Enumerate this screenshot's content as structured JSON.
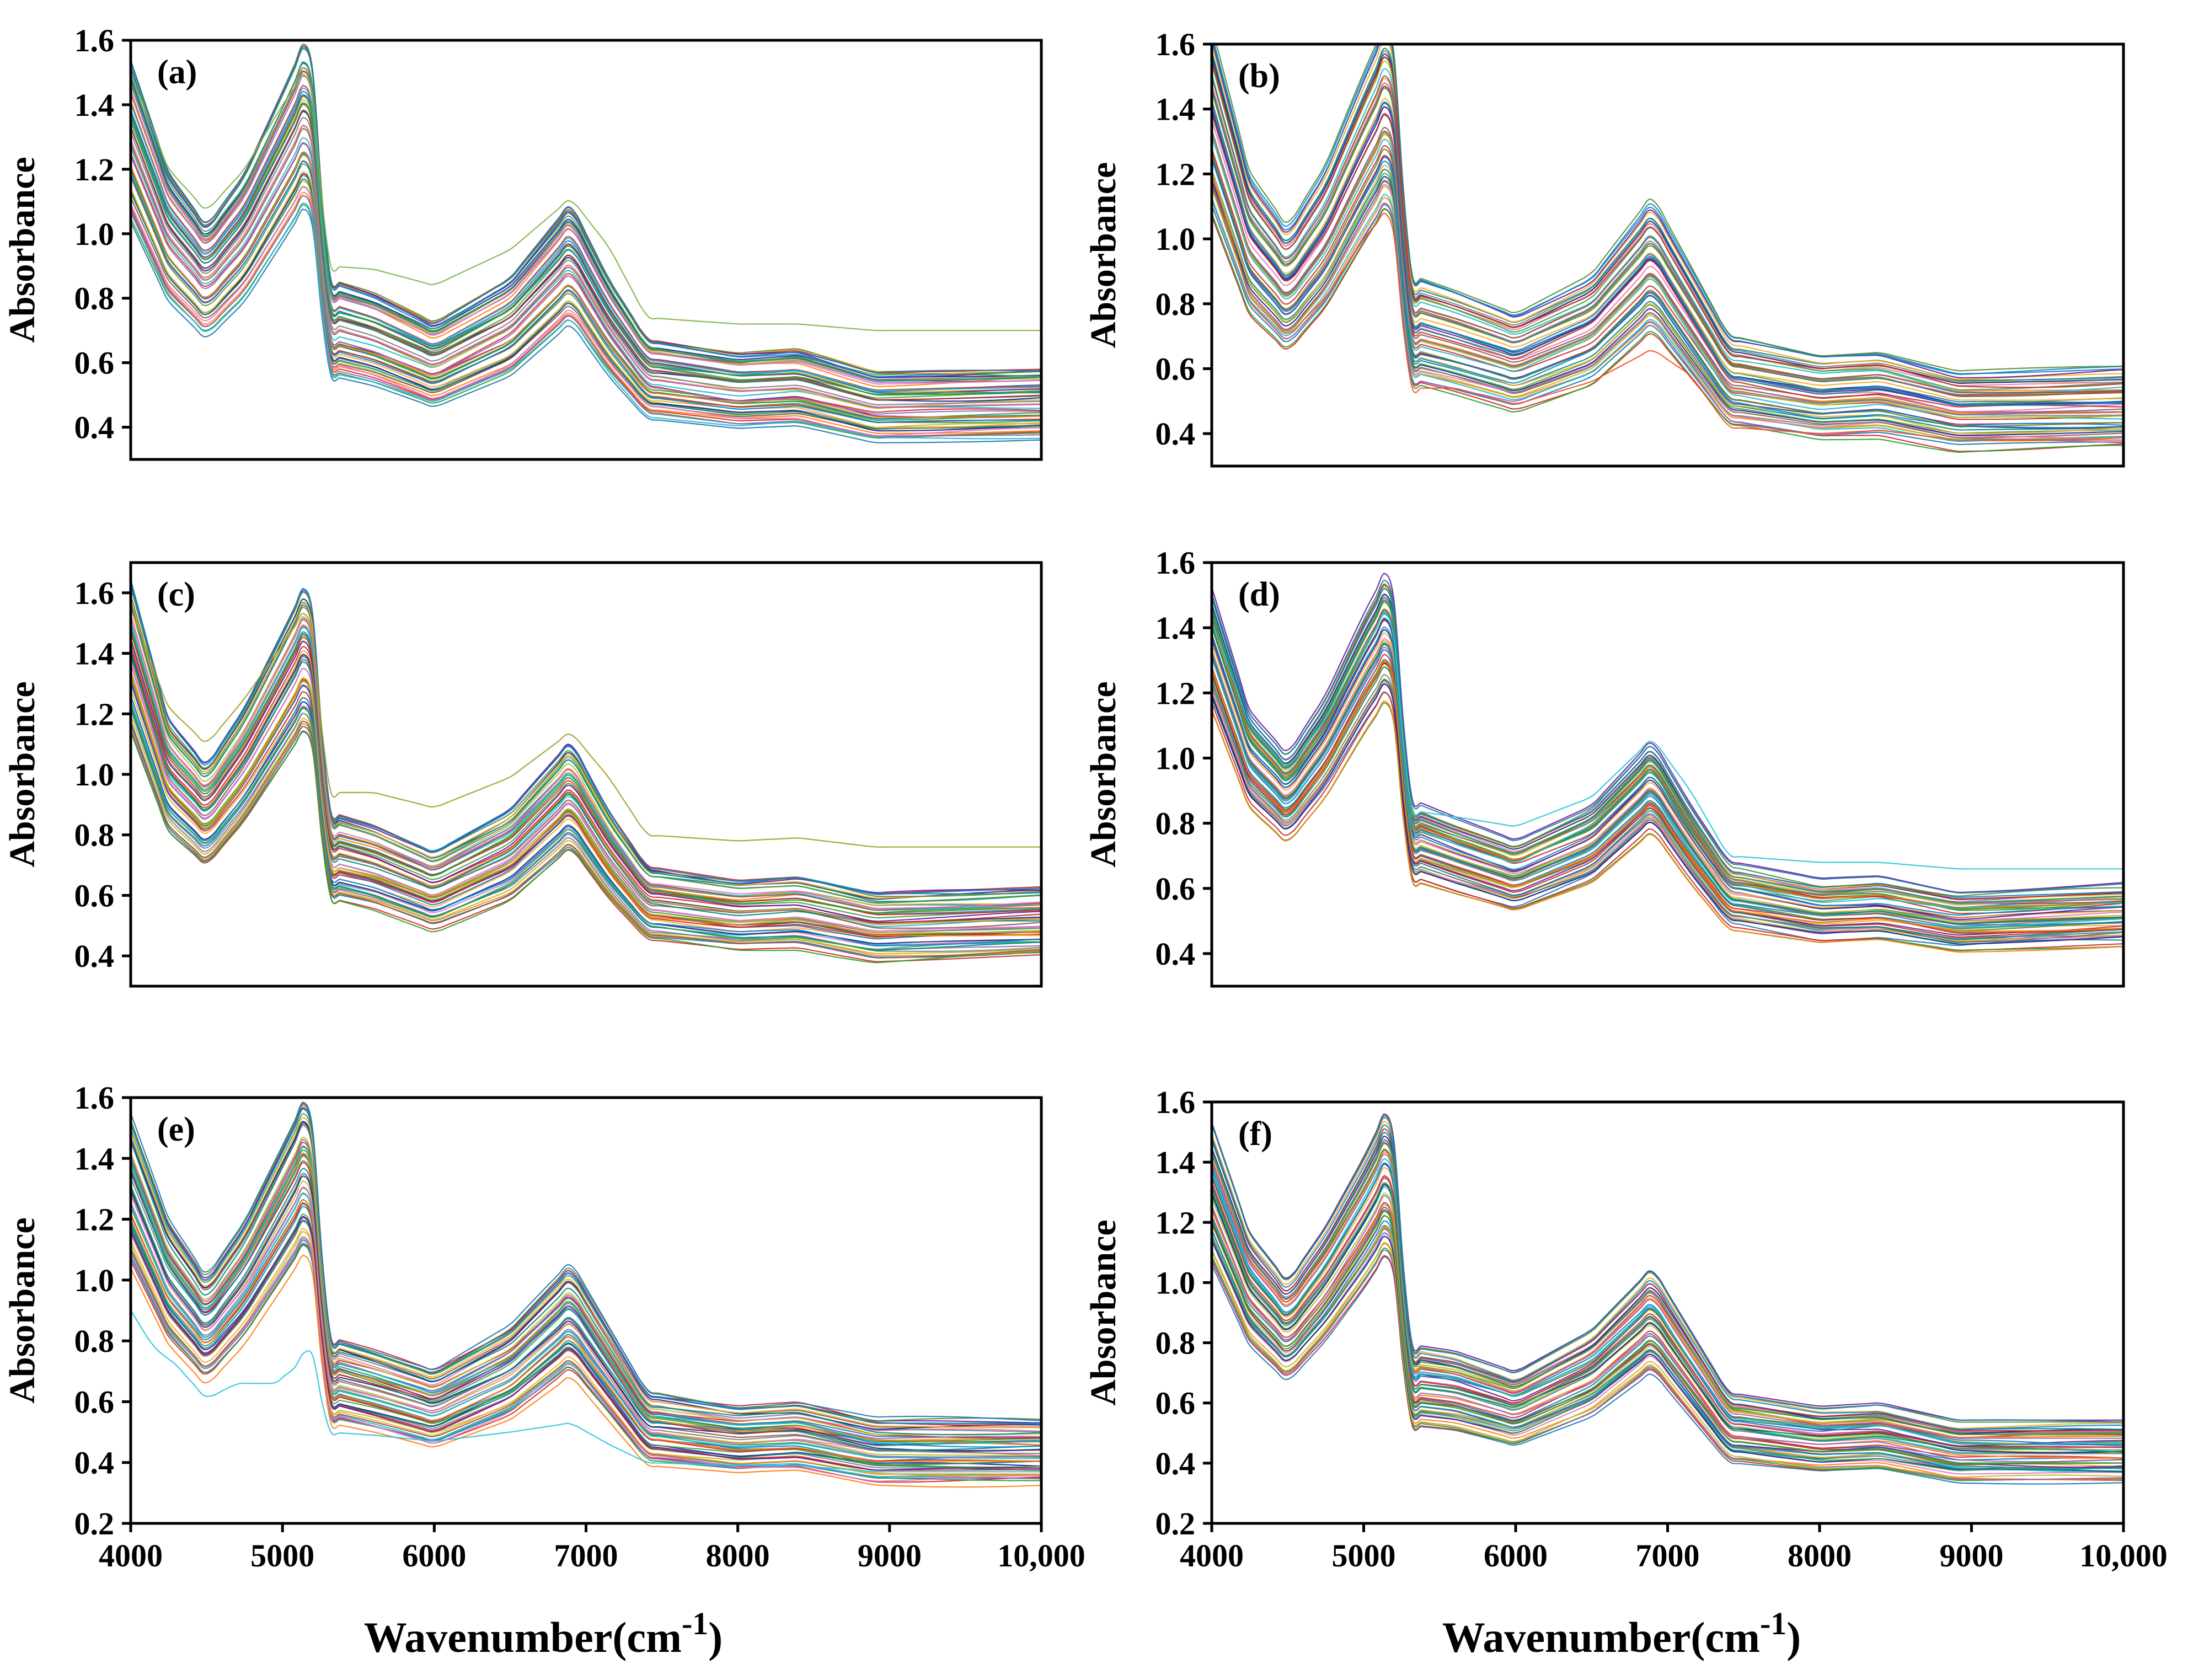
{
  "chart_data": [
    {
      "panel": "(a)",
      "type": "line",
      "xlabel": "",
      "ylabel": "Absorbance",
      "xlim": [
        4000,
        10000
      ],
      "ylim": [
        0.3,
        1.6
      ],
      "yticks": [
        "0.4",
        "0.6",
        "0.8",
        "1.0",
        "1.2",
        "1.4",
        "1.6"
      ],
      "xticks": [],
      "n_spectra": 55,
      "template": {
        "x": [
          4000,
          4250,
          4500,
          4750,
          5000,
          5180,
          5300,
          5600,
          6000,
          6500,
          6900,
          7150,
          7400,
          8000,
          8400,
          8900,
          10000
        ],
        "y": [
          1.3,
          1.0,
          0.86,
          1.0,
          1.22,
          1.38,
          0.72,
          0.68,
          0.6,
          0.72,
          0.92,
          0.72,
          0.56,
          0.52,
          0.53,
          0.47,
          0.48
        ]
      },
      "spread": [
        0.36,
        0.42
      ],
      "outliers": [
        {
          "x": [
            4000,
            4250,
            4500,
            4750,
            5000,
            5180,
            5300,
            5600,
            6000,
            6500,
            6900,
            7150,
            7400,
            8000,
            8400,
            8900,
            10000
          ],
          "y": [
            1.5,
            1.2,
            1.07,
            1.2,
            1.4,
            1.52,
            0.9,
            0.89,
            0.84,
            0.95,
            1.11,
            0.96,
            0.74,
            0.72,
            0.72,
            0.7,
            0.7
          ],
          "color": "#7cb342"
        }
      ]
    },
    {
      "panel": "(b)",
      "type": "line",
      "xlabel": "",
      "ylabel": "Absorbance",
      "xlim": [
        4000,
        10000
      ],
      "ylim": [
        0.3,
        1.6
      ],
      "yticks": [
        "0.4",
        "0.6",
        "0.8",
        "1.0",
        "1.2",
        "1.4",
        "1.6"
      ],
      "xticks": [],
      "n_spectra": 55,
      "template": {
        "x": [
          4000,
          4250,
          4500,
          4750,
          5000,
          5180,
          5300,
          5600,
          6000,
          6500,
          6900,
          7150,
          7400,
          8000,
          8400,
          8900,
          10000
        ],
        "y": [
          1.36,
          0.98,
          0.84,
          1.0,
          1.24,
          1.4,
          0.72,
          0.68,
          0.62,
          0.72,
          0.92,
          0.74,
          0.56,
          0.51,
          0.52,
          0.47,
          0.48
        ]
      },
      "spread": [
        0.36,
        0.42
      ],
      "outliers": [
        {
          "x": [
            4000,
            4250,
            4500,
            4750,
            5000,
            5180,
            5300,
            5600,
            6000,
            6500,
            6900,
            7150,
            7400,
            8000,
            8400,
            8900,
            10000
          ],
          "y": [
            1.2,
            0.82,
            0.7,
            0.82,
            1.0,
            1.1,
            0.54,
            0.54,
            0.49,
            0.56,
            0.66,
            0.58,
            0.42,
            0.4,
            0.41,
            0.38,
            0.38
          ],
          "color": "#f4511e"
        }
      ]
    },
    {
      "panel": "(c)",
      "type": "line",
      "xlabel": "",
      "ylabel": "Absorbance",
      "xlim": [
        4000,
        10000
      ],
      "ylim": [
        0.3,
        1.7
      ],
      "yticks": [
        "0.4",
        "0.6",
        "0.8",
        "1.0",
        "1.2",
        "1.4",
        "1.6"
      ],
      "xticks": [],
      "n_spectra": 55,
      "template": {
        "x": [
          4000,
          4250,
          4500,
          4750,
          5000,
          5180,
          5300,
          5600,
          6000,
          6500,
          6900,
          7150,
          7400,
          8000,
          8400,
          8900,
          10000
        ],
        "y": [
          1.4,
          1.0,
          0.87,
          1.04,
          1.26,
          1.42,
          0.74,
          0.7,
          0.62,
          0.74,
          0.94,
          0.74,
          0.58,
          0.54,
          0.55,
          0.5,
          0.52
        ]
      },
      "spread": [
        0.3,
        0.38
      ],
      "outliers": [
        {
          "x": [
            4000,
            4250,
            4500,
            4750,
            5000,
            5180,
            5300,
            5600,
            6000,
            6500,
            6900,
            7150,
            7400,
            8000,
            8400,
            8900,
            10000
          ],
          "y": [
            1.55,
            1.22,
            1.1,
            1.25,
            1.43,
            1.56,
            0.94,
            0.94,
            0.89,
            0.99,
            1.14,
            0.99,
            0.8,
            0.78,
            0.79,
            0.76,
            0.76
          ],
          "color": "#9e9d24"
        }
      ]
    },
    {
      "panel": "(d)",
      "type": "line",
      "xlabel": "",
      "ylabel": "Absorbance",
      "xlim": [
        4000,
        10000
      ],
      "ylim": [
        0.3,
        1.6
      ],
      "yticks": [
        "0.4",
        "0.6",
        "0.8",
        "1.0",
        "1.2",
        "1.4",
        "1.6"
      ],
      "xticks": [],
      "n_spectra": 55,
      "template": {
        "x": [
          4000,
          4250,
          4500,
          4750,
          5000,
          5180,
          5300,
          5600,
          6000,
          6500,
          6900,
          7150,
          7400,
          8000,
          8400,
          8900,
          10000
        ],
        "y": [
          1.34,
          1.0,
          0.88,
          1.04,
          1.26,
          1.4,
          0.75,
          0.7,
          0.64,
          0.74,
          0.92,
          0.74,
          0.58,
          0.53,
          0.54,
          0.5,
          0.52
        ]
      },
      "spread": [
        0.22,
        0.32
      ],
      "outliers": [
        {
          "x": [
            4000,
            4250,
            4500,
            4750,
            5000,
            5180,
            5300,
            5600,
            6000,
            6500,
            6900,
            7150,
            7400,
            8000,
            8400,
            8900,
            10000
          ],
          "y": [
            1.42,
            1.1,
            0.97,
            1.12,
            1.34,
            1.47,
            0.84,
            0.82,
            0.79,
            0.88,
            1.06,
            0.9,
            0.7,
            0.68,
            0.68,
            0.66,
            0.66
          ],
          "color": "#26c6da"
        }
      ]
    },
    {
      "panel": "(e)",
      "type": "line",
      "xlabel": "Wavenumber(cm-1)",
      "ylabel": "Absorbance",
      "xlim": [
        4000,
        10000
      ],
      "ylim": [
        0.2,
        1.6
      ],
      "yticks": [
        "0.2",
        "0.4",
        "0.6",
        "0.8",
        "1.0",
        "1.2",
        "1.4",
        "1.6"
      ],
      "xticks": [
        "4000",
        "5000",
        "6000",
        "7000",
        "8000",
        "9000",
        "10,000"
      ],
      "n_spectra": 55,
      "template": {
        "x": [
          4000,
          4250,
          4500,
          4750,
          5000,
          5180,
          5300,
          5600,
          6000,
          6500,
          6900,
          7150,
          7400,
          8000,
          8400,
          8900,
          10000
        ],
        "y": [
          1.3,
          1.0,
          0.84,
          1.0,
          1.22,
          1.38,
          0.68,
          0.64,
          0.58,
          0.7,
          0.88,
          0.7,
          0.52,
          0.48,
          0.49,
          0.44,
          0.44
        ]
      },
      "spread": [
        0.34,
        0.4
      ],
      "outliers": [
        {
          "x": [
            4000,
            4150,
            4300,
            4500,
            4700,
            4950,
            5100,
            5180,
            5300,
            5600,
            6000,
            6500,
            6900,
            7150,
            7400,
            8000,
            8400,
            8900,
            10000
          ],
          "y": [
            0.9,
            0.78,
            0.72,
            0.61,
            0.66,
            0.66,
            0.72,
            0.8,
            0.5,
            0.49,
            0.47,
            0.5,
            0.53,
            0.46,
            0.4,
            0.39,
            0.39,
            0.37,
            0.37
          ],
          "color": "#26c6da"
        }
      ]
    },
    {
      "panel": "(f)",
      "type": "line",
      "xlabel": "Wavenumber(cm-1)",
      "ylabel": "Absorbance",
      "xlim": [
        4000,
        10000
      ],
      "ylim": [
        0.2,
        1.6
      ],
      "yticks": [
        "0.2",
        "0.4",
        "0.6",
        "0.8",
        "1.0",
        "1.2",
        "1.4",
        "1.6"
      ],
      "xticks": [
        "4000",
        "5000",
        "6000",
        "7000",
        "8000",
        "9000",
        "10,000"
      ],
      "n_spectra": 55,
      "template": {
        "x": [
          4000,
          4250,
          4500,
          4750,
          5000,
          5180,
          5300,
          5600,
          6000,
          6500,
          6900,
          7150,
          7400,
          8000,
          8400,
          8900,
          10000
        ],
        "y": [
          1.3,
          0.98,
          0.84,
          1.0,
          1.2,
          1.36,
          0.66,
          0.64,
          0.58,
          0.7,
          0.88,
          0.7,
          0.52,
          0.48,
          0.49,
          0.44,
          0.44
        ]
      },
      "spread": [
        0.3,
        0.36
      ],
      "outliers": []
    }
  ],
  "colors": [
    "#1f77b4",
    "#d62728",
    "#2ca02c",
    "#ff7f0e",
    "#9467bd",
    "#17becf",
    "#bcbd22",
    "#8c564b",
    "#e377c2",
    "#7f7f7f",
    "#1a237e",
    "#00897b",
    "#43a047",
    "#f9a825",
    "#c62828",
    "#6a1b9a",
    "#0288d1",
    "#558b2f"
  ]
}
